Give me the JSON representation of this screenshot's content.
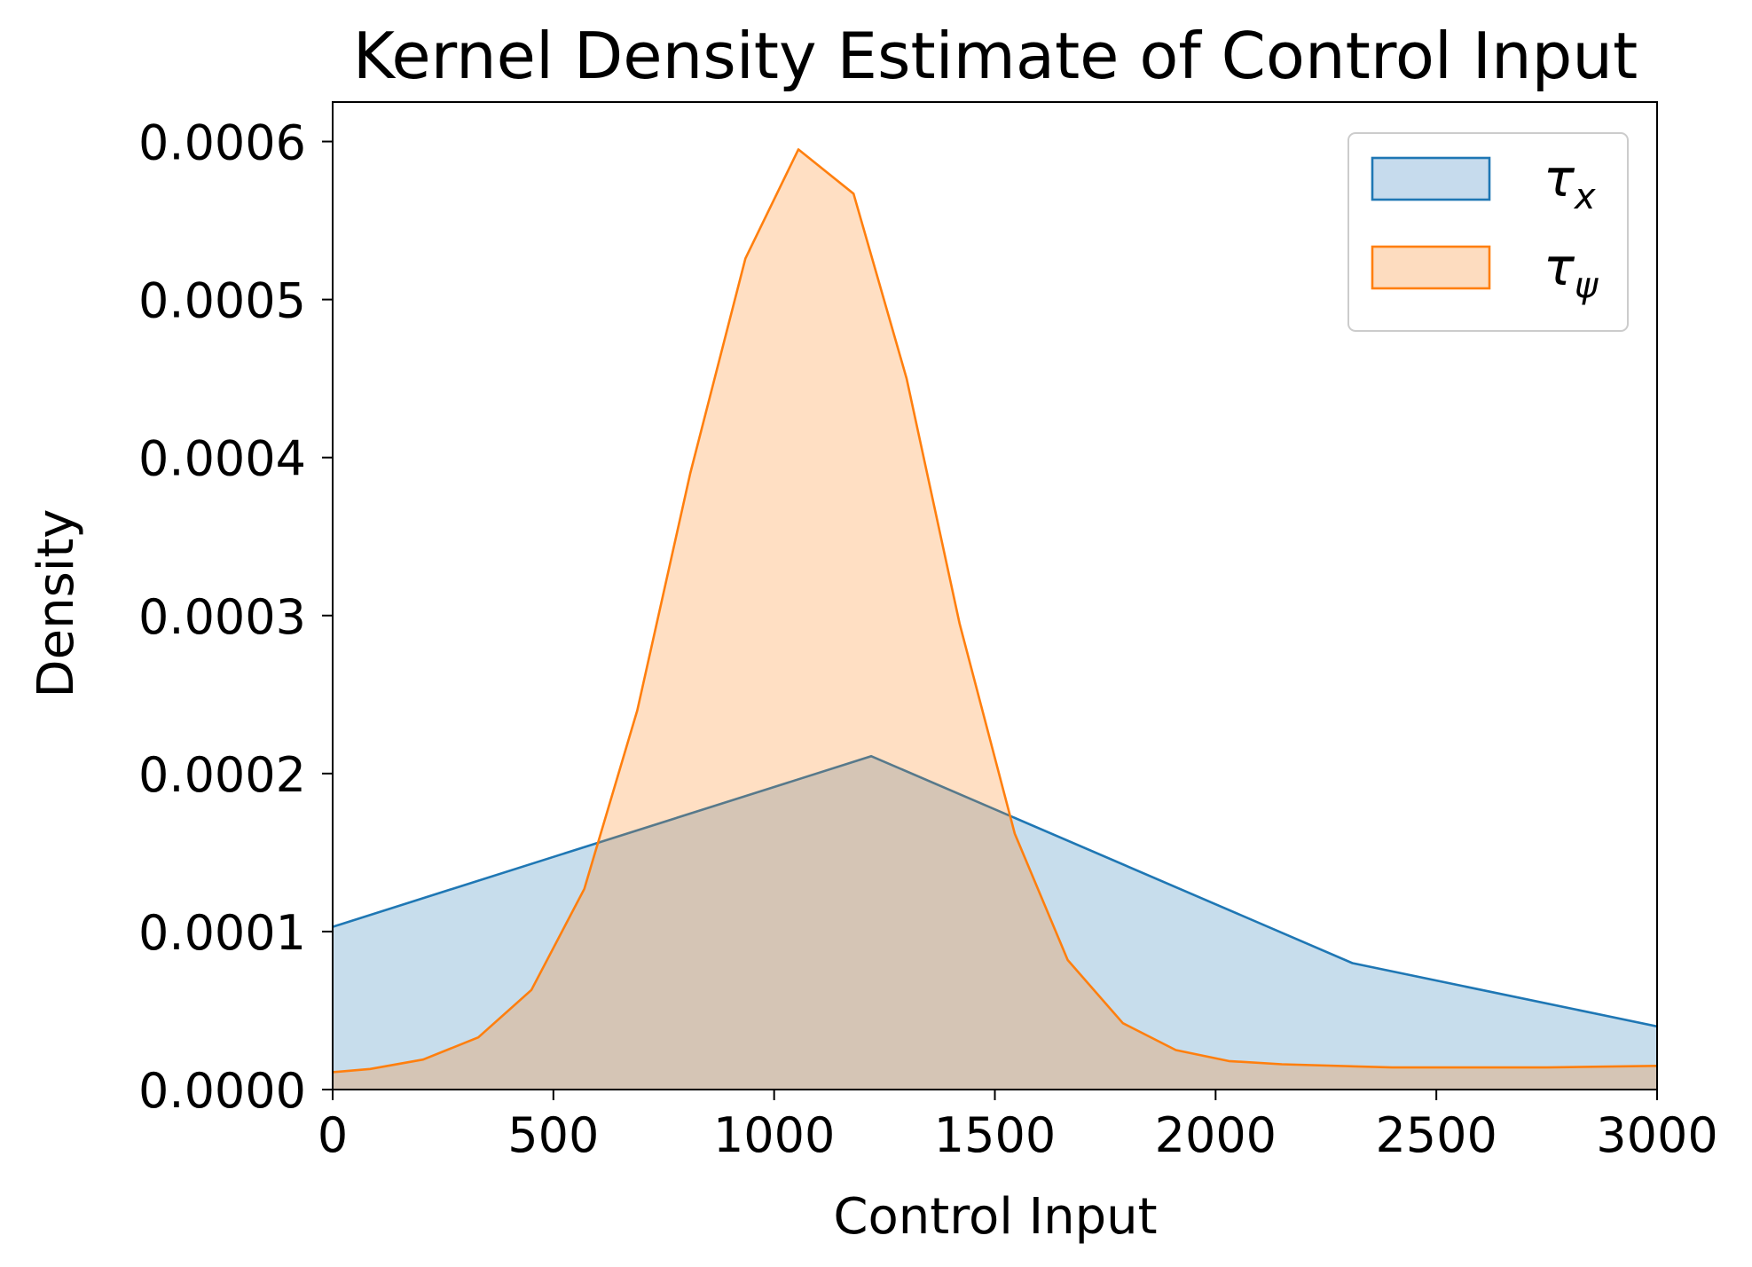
{
  "chart_data": {
    "type": "area",
    "title": "Kernel Density Estimate of Control Input",
    "xlabel": "Control Input",
    "ylabel": "Density",
    "xlim": [
      0,
      3000
    ],
    "ylim": [
      0,
      0.000625
    ],
    "xticks": [
      0,
      500,
      1000,
      1500,
      2000,
      2500,
      3000
    ],
    "xtick_labels": [
      "0",
      "500",
      "1000",
      "1500",
      "2000",
      "2500",
      "3000"
    ],
    "yticks": [
      0,
      0.0001,
      0.0002,
      0.0003,
      0.0004,
      0.0005,
      0.0006
    ],
    "ytick_labels": [
      "0.0000",
      "0.0001",
      "0.0002",
      "0.0003",
      "0.0004",
      "0.0005",
      "0.0006"
    ],
    "grid": false,
    "legend_position": "top-right",
    "series": [
      {
        "name": "τx",
        "name_main": "τ",
        "name_sub": "x",
        "color": "#1f77b4",
        "fill": "#c6dbed",
        "x": [
          0,
          1220,
          2310,
          3000
        ],
        "y": [
          0.000103,
          0.000211,
          8e-05,
          4e-05
        ]
      },
      {
        "name": "τψ",
        "name_main": "τ",
        "name_sub": "ψ",
        "color": "#ff7f0e",
        "fill": "#fddcbf",
        "x": [
          0,
          85,
          205,
          330,
          450,
          570,
          690,
          810,
          935,
          1055,
          1180,
          1300,
          1420,
          1545,
          1665,
          1790,
          1910,
          2030,
          2150,
          2400,
          2650,
          2750,
          3000
        ],
        "y": [
          1.1e-05,
          1.3e-05,
          1.9e-05,
          3.3e-05,
          6.3e-05,
          0.000127,
          0.00024,
          0.00039,
          0.000526,
          0.000595,
          0.000567,
          0.00045,
          0.000295,
          0.000162,
          8.2e-05,
          4.2e-05,
          2.5e-05,
          1.8e-05,
          1.6e-05,
          1.4e-05,
          1.4e-05,
          1.4e-05,
          1.5e-05
        ]
      }
    ]
  }
}
